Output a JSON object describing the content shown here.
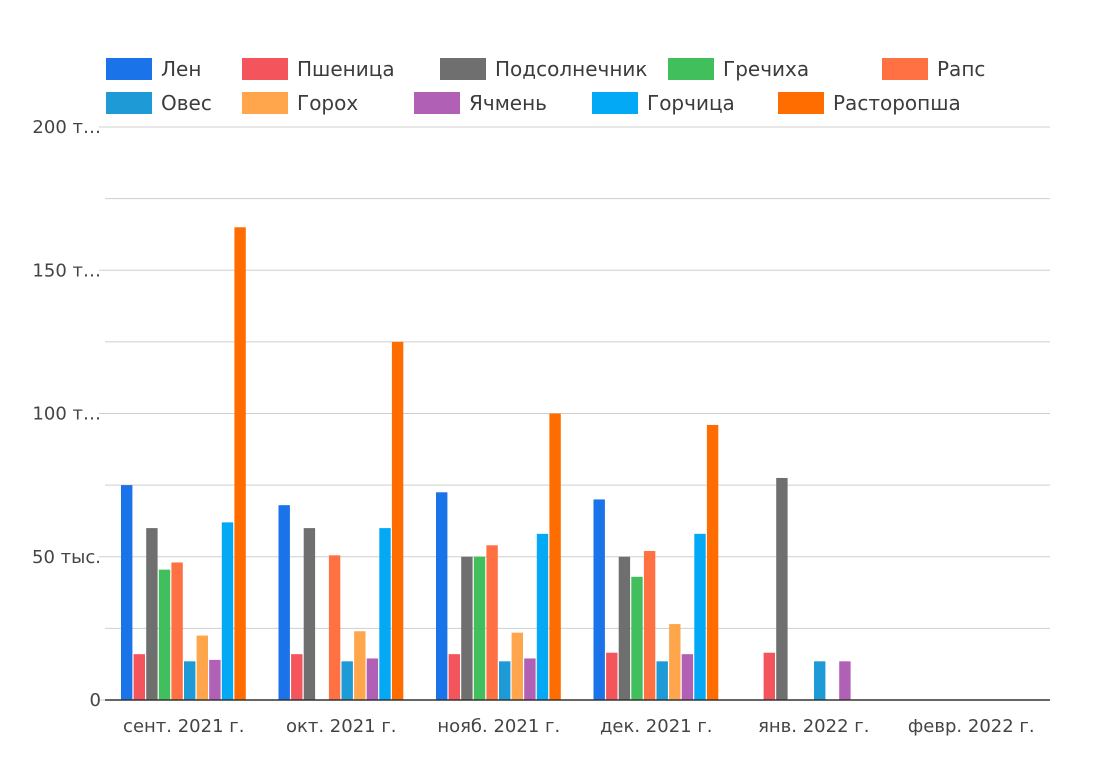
{
  "chart_data": {
    "type": "bar",
    "title": "",
    "xlabel": "",
    "ylabel": "",
    "ylim": [
      0,
      200000
    ],
    "grid": true,
    "legend_position": "top",
    "y_ticks": [
      {
        "value": 0,
        "label": "0"
      },
      {
        "value": 50000,
        "label": "50 тыс."
      },
      {
        "value": 100000,
        "label": "100 т…"
      },
      {
        "value": 150000,
        "label": "150 т…"
      },
      {
        "value": 200000,
        "label": "200 т…"
      }
    ],
    "categories": [
      "сент. 2021 г.",
      "окт. 2021 г.",
      "нояб. 2021 г.",
      "дек. 2021 г.",
      "янв. 2022 г.",
      "февр. 2022 г."
    ],
    "series": [
      {
        "name": "Лен",
        "color": "#1a73e8",
        "values": [
          75000,
          68000,
          72500,
          70000,
          null,
          null
        ]
      },
      {
        "name": "Пшеница",
        "color": "#f4545c",
        "values": [
          16000,
          16000,
          16000,
          16500,
          16500,
          null
        ]
      },
      {
        "name": "Подсолнечник",
        "color": "#6f6f6f",
        "values": [
          60000,
          60000,
          50000,
          50000,
          77500,
          null
        ]
      },
      {
        "name": "Гречиха",
        "color": "#41bf5c",
        "values": [
          45500,
          null,
          50000,
          43000,
          null,
          null
        ]
      },
      {
        "name": "Рапс",
        "color": "#ff7043",
        "values": [
          48000,
          50500,
          54000,
          52000,
          null,
          null
        ]
      },
      {
        "name": "Овес",
        "color": "#1e9bd7",
        "values": [
          13500,
          13500,
          13500,
          13500,
          13500,
          null
        ]
      },
      {
        "name": "Горох",
        "color": "#ffa64d",
        "values": [
          22500,
          24000,
          23500,
          26500,
          null,
          null
        ]
      },
      {
        "name": "Ячмень",
        "color": "#b061b5",
        "values": [
          14000,
          14500,
          14500,
          16000,
          13500,
          null
        ]
      },
      {
        "name": "Горчица",
        "color": "#03a9f4",
        "values": [
          62000,
          60000,
          58000,
          58000,
          null,
          null
        ]
      },
      {
        "name": "Расторопша",
        "color": "#ff6d00",
        "values": [
          165000,
          125000,
          100000,
          96000,
          null,
          null
        ]
      }
    ]
  }
}
